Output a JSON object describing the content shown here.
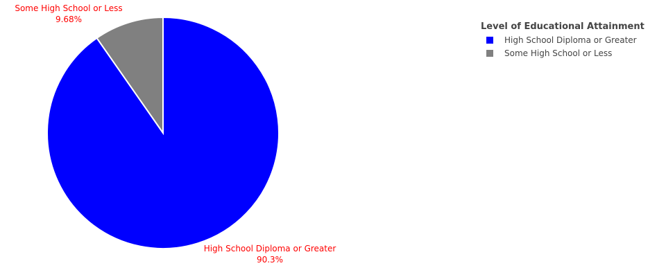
{
  "chart_data": {
    "type": "pie",
    "title": "",
    "categories": [
      "High School Diploma or Greater",
      "Some High School or Less"
    ],
    "values": [
      90.32,
      9.68
    ],
    "value_labels": [
      "90.3%",
      "9.68%"
    ],
    "colors": [
      "#0000ff",
      "#808080"
    ],
    "label_color": "#ff0000",
    "legend": {
      "title": "Level of Educational Attainment",
      "placement": "top-right",
      "entries": [
        "High School Diploma or Greater",
        "Some High School or Less"
      ]
    }
  }
}
